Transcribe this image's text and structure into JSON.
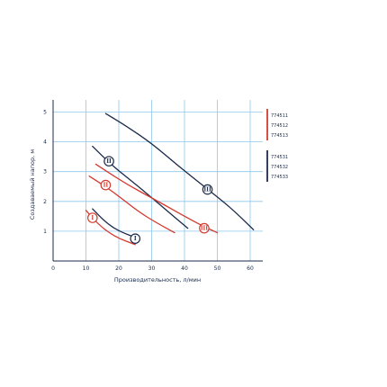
{
  "chart_data": {
    "type": "line",
    "xlabel": "Производительность, л/мин",
    "ylabel": "Создаваемый напор, м",
    "xlim": [
      0,
      60
    ],
    "ylim": [
      0,
      5
    ],
    "x_ticks": [
      "0",
      "10",
      "20",
      "30",
      "40",
      "50",
      "60"
    ],
    "y_ticks": [
      "1",
      "2",
      "3",
      "4",
      "5"
    ],
    "grid": true,
    "colors": {
      "red": "#d43a2f",
      "navy": "#1b2a4a",
      "grid": "#8cc8ec"
    },
    "legend": [
      {
        "color": "red",
        "items": [
          "774511",
          "774512",
          "774513"
        ]
      },
      {
        "color": "navy",
        "items": [
          "774531",
          "774532",
          "774533"
        ]
      }
    ],
    "series": [
      {
        "color": "navy",
        "label": "I",
        "marker": [
          25,
          0.75
        ],
        "points": [
          [
            12,
            1.75
          ],
          [
            16,
            1.3
          ],
          [
            20,
            1.0
          ],
          [
            26,
            0.75
          ]
        ]
      },
      {
        "color": "navy",
        "label": "II",
        "marker": [
          17,
          3.35
        ],
        "points": [
          [
            12,
            3.85
          ],
          [
            18,
            3.2
          ],
          [
            26,
            2.5
          ],
          [
            34,
            1.75
          ],
          [
            41,
            1.1
          ]
        ]
      },
      {
        "color": "navy",
        "label": "III",
        "marker": [
          47,
          2.4
        ],
        "points": [
          [
            16,
            4.95
          ],
          [
            22,
            4.55
          ],
          [
            30,
            3.95
          ],
          [
            38,
            3.2
          ],
          [
            46,
            2.5
          ],
          [
            54,
            1.8
          ],
          [
            61,
            1.05
          ]
        ]
      },
      {
        "color": "red",
        "label": "I",
        "marker": [
          12,
          1.45
        ],
        "points": [
          [
            10,
            1.7
          ],
          [
            14,
            1.2
          ],
          [
            19,
            0.8
          ],
          [
            25,
            0.55
          ]
        ]
      },
      {
        "color": "red",
        "label": "II",
        "marker": [
          16,
          2.55
        ],
        "points": [
          [
            11,
            2.85
          ],
          [
            18,
            2.35
          ],
          [
            26,
            1.65
          ],
          [
            32,
            1.25
          ],
          [
            37,
            0.95
          ]
        ]
      },
      {
        "color": "red",
        "label": "III",
        "marker": [
          46,
          1.1
        ],
        "points": [
          [
            13,
            3.25
          ],
          [
            22,
            2.6
          ],
          [
            32,
            2.0
          ],
          [
            40,
            1.5
          ],
          [
            46,
            1.15
          ],
          [
            50,
            0.95
          ]
        ]
      }
    ]
  }
}
